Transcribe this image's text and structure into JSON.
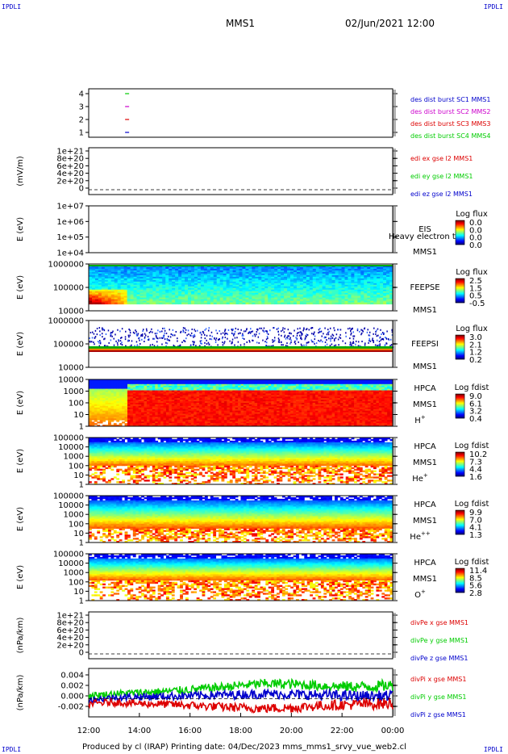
{
  "corner_label": "IPDLI",
  "header": {
    "spacecraft": "MMS1",
    "datetime": "02/Jun/2021 12:00"
  },
  "footer": {
    "text": "Produced by cl (IRAP)   Printing date: 04/Dec/2023   mms_mms1_srvy_vue_web2.cl"
  },
  "colors": {
    "red": "#dd0000",
    "green": "#00cc00",
    "blue": "#0000cc",
    "magenta": "#cc00cc"
  },
  "chart_data": [
    {
      "type": "line",
      "title": "",
      "ylim": [
        0.5,
        4.5
      ],
      "yticks": [
        "4",
        "3",
        "2",
        "1"
      ],
      "legend": [
        {
          "text": "des dist burst SC1 MMS1",
          "color": "#0000cc"
        },
        {
          "text": "des dist burst SC2 MMS2",
          "color": "#cc00cc"
        },
        {
          "text": "des dist burst SC3 MMS3",
          "color": "#dd0000"
        },
        {
          "text": "des dist burst SC4 MMS4",
          "color": "#00cc00"
        }
      ],
      "series": [
        {
          "x": [
            "13:30"
          ],
          "values": [
            4
          ],
          "color": "#00cc00"
        },
        {
          "x": [
            "13:30"
          ],
          "values": [
            3
          ],
          "color": "#cc00cc"
        },
        {
          "x": [
            "13:30"
          ],
          "values": [
            2
          ],
          "color": "#dd0000"
        },
        {
          "x": [
            "13:30"
          ],
          "values": [
            1
          ],
          "color": "#0000cc"
        }
      ]
    },
    {
      "type": "line",
      "ylabel": "(mV/m)",
      "yticks": [
        "1e+21",
        "8e+20",
        "6e+20",
        "4e+20",
        "2e+20",
        "0"
      ],
      "legend": [
        {
          "text": "edi ex gse l2 MMS1",
          "color": "#dd0000"
        },
        {
          "text": "edi ey gse l2 MMS1",
          "color": "#00cc00"
        },
        {
          "text": "edi ez gse l2 MMS1",
          "color": "#0000cc"
        }
      ]
    },
    {
      "type": "heatmap",
      "ylabel": "E (eV)",
      "yscale": "log",
      "yticks": [
        "1e+07",
        "1e+06",
        "1e+05",
        "1e+04"
      ],
      "instrument": [
        "EIS",
        "MMS1"
      ],
      "overlay_text": "Heavy electron tof",
      "colorbar": {
        "label": "Log flux",
        "ticks": [
          "0.0",
          "0.0",
          "0.0",
          "0.0"
        ]
      }
    },
    {
      "type": "heatmap",
      "ylabel": "E (eV)",
      "yscale": "log",
      "yticks": [
        "1000000",
        "100000",
        "10000"
      ],
      "instrument": [
        "FEEPSE",
        "MMS1"
      ],
      "colorbar": {
        "label": "Log flux",
        "ticks": [
          "2.5",
          "1.5",
          "0.5",
          "-0.5"
        ]
      }
    },
    {
      "type": "heatmap",
      "ylabel": "E (eV)",
      "yscale": "log",
      "yticks": [
        "1000000",
        "100000",
        "10000"
      ],
      "instrument": [
        "FEEPSI",
        "MMS1"
      ],
      "colorbar": {
        "label": "Log flux",
        "ticks": [
          "3.0",
          "2.1",
          "1.2",
          "0.2"
        ]
      }
    },
    {
      "type": "heatmap",
      "ylabel": "E (eV)",
      "yscale": "log",
      "yticks": [
        "10000",
        "1000",
        "100",
        "10",
        "1"
      ],
      "instrument": [
        "HPCA",
        "MMS1"
      ],
      "species": "H",
      "species_sup": "+",
      "colorbar": {
        "label": "Log fdist",
        "ticks": [
          "9.0",
          "6.1",
          "3.2",
          "0.4"
        ]
      }
    },
    {
      "type": "heatmap",
      "ylabel": "E (eV)",
      "yscale": "log",
      "yticks": [
        "100000",
        "10000",
        "1000",
        "100",
        "10",
        "1"
      ],
      "instrument": [
        "HPCA",
        "MMS1"
      ],
      "species": "He",
      "species_sup": "+",
      "colorbar": {
        "label": "Log fdist",
        "ticks": [
          "10.2",
          "7.3",
          "4.4",
          "1.6"
        ]
      }
    },
    {
      "type": "heatmap",
      "ylabel": "E (eV)",
      "yscale": "log",
      "yticks": [
        "100000",
        "10000",
        "1000",
        "100",
        "10",
        "1"
      ],
      "instrument": [
        "HPCA",
        "MMS1"
      ],
      "species": "He",
      "species_sup": "++",
      "colorbar": {
        "label": "Log fdist",
        "ticks": [
          "9.9",
          "7.0",
          "4.1",
          "1.3"
        ]
      }
    },
    {
      "type": "heatmap",
      "ylabel": "E (eV)",
      "yscale": "log",
      "yticks": [
        "100000",
        "10000",
        "1000",
        "100",
        "10",
        "1"
      ],
      "instrument": [
        "HPCA",
        "MMS1"
      ],
      "species": "O",
      "species_sup": "+",
      "colorbar": {
        "label": "Log fdist",
        "ticks": [
          "11.4",
          "8.5",
          "5.6",
          "2.8"
        ]
      }
    },
    {
      "type": "line",
      "ylabel": "(nPa/km)",
      "yticks": [
        "1e+21",
        "8e+20",
        "6e+20",
        "4e+20",
        "2e+20",
        "0"
      ],
      "legend": [
        {
          "text": "divPe x gse MMS1",
          "color": "#dd0000"
        },
        {
          "text": "divPe y gse MMS1",
          "color": "#00cc00"
        },
        {
          "text": "divPe z gse MMS1",
          "color": "#0000cc"
        }
      ]
    },
    {
      "type": "line",
      "ylabel": "(nPa/km)",
      "ylim": [
        -0.003,
        0.005
      ],
      "yticks": [
        "0.004",
        "0.002",
        "0.000",
        "-0.002"
      ],
      "legend": [
        {
          "text": "divPi x gse MMS1",
          "color": "#dd0000"
        },
        {
          "text": "divPi y gse MMS1",
          "color": "#00cc00"
        },
        {
          "text": "divPi z gse MMS1",
          "color": "#0000cc"
        }
      ],
      "series": [
        {
          "color": "#00cc00",
          "x": [
            "12:00",
            "13:00",
            "14:00",
            "15:00",
            "16:00",
            "17:00",
            "18:00",
            "19:00",
            "20:00",
            "21:00",
            "22:00",
            "23:00",
            "00:00"
          ],
          "values": [
            0.0005,
            0.0008,
            0.001,
            0.0012,
            0.0015,
            0.0018,
            0.0022,
            0.0025,
            0.0024,
            0.0022,
            0.002,
            0.002,
            0.0022
          ]
        },
        {
          "color": "#0000cc",
          "x": [
            "12:00",
            "13:00",
            "14:00",
            "15:00",
            "16:00",
            "17:00",
            "18:00",
            "19:00",
            "20:00",
            "21:00",
            "22:00",
            "23:00",
            "00:00"
          ],
          "values": [
            -0.0002,
            0.0002,
            0.0003,
            0.0004,
            0.0005,
            0.0006,
            0.0007,
            0.0008,
            0.0007,
            0.0006,
            0.0005,
            0.0004,
            0.0004
          ]
        },
        {
          "color": "#dd0000",
          "x": [
            "12:00",
            "13:00",
            "14:00",
            "15:00",
            "16:00",
            "17:00",
            "18:00",
            "19:00",
            "20:00",
            "21:00",
            "22:00",
            "23:00",
            "00:00"
          ],
          "values": [
            -0.0008,
            -0.0006,
            -0.0008,
            -0.0009,
            -0.0011,
            -0.0013,
            -0.0015,
            -0.0016,
            -0.0015,
            -0.0012,
            -0.001,
            -0.0009,
            -0.0008
          ]
        }
      ]
    }
  ],
  "xaxis": {
    "ticks": [
      "12:00",
      "14:00",
      "16:00",
      "18:00",
      "20:00",
      "22:00",
      "00:00"
    ]
  }
}
